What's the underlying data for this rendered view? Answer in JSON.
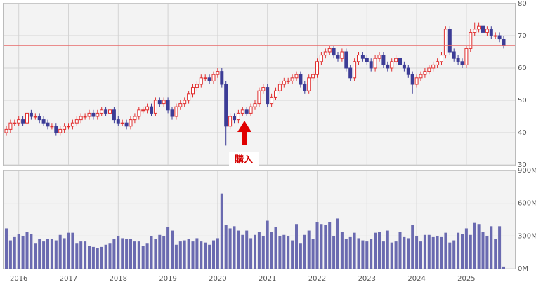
{
  "chart_data": {
    "type": "candlestick",
    "categories": [
      null,
      null,
      null,
      "2016",
      null,
      null,
      null,
      null,
      null,
      null,
      null,
      null,
      null,
      null,
      null,
      "2017",
      null,
      null,
      null,
      null,
      null,
      null,
      null,
      null,
      null,
      null,
      null,
      "2018",
      null,
      null,
      null,
      null,
      null,
      null,
      null,
      null,
      null,
      null,
      null,
      "2019",
      null,
      null,
      null,
      null,
      null,
      null,
      null,
      null,
      null,
      null,
      null,
      "2020",
      null,
      null,
      null,
      null,
      null,
      null,
      null,
      null,
      null,
      null,
      null,
      "2021",
      null,
      null,
      null,
      null,
      null,
      null,
      null,
      null,
      null,
      null,
      null,
      "2022",
      null,
      null,
      null,
      null,
      null,
      null,
      null,
      null,
      null,
      null,
      null,
      "2023",
      null,
      null,
      null,
      null,
      null,
      null,
      null,
      null,
      null,
      null,
      null,
      "2024",
      null,
      null,
      null,
      null,
      null,
      null,
      null,
      null,
      null,
      null,
      null,
      "2025",
      null,
      null,
      null,
      null,
      null,
      null,
      null,
      null,
      null
    ],
    "open": [
      40,
      41,
      43,
      43,
      44,
      43,
      46,
      45,
      45,
      44,
      43,
      42,
      42,
      40,
      41,
      42,
      42,
      43,
      44,
      45,
      45,
      46,
      45,
      46,
      47,
      46,
      47,
      44,
      43,
      43,
      42,
      44,
      45,
      47,
      47,
      48,
      46,
      50,
      49,
      50,
      47,
      45,
      48,
      49,
      50,
      52,
      54,
      55,
      57,
      57,
      56,
      58,
      59,
      55,
      42,
      45,
      44,
      46,
      47,
      46,
      48,
      49,
      53,
      54,
      49,
      51,
      53,
      55,
      56,
      56,
      57,
      58,
      55,
      53,
      57,
      58,
      62,
      64,
      65,
      66,
      64,
      63,
      65,
      60,
      57,
      62,
      64,
      63,
      62,
      60,
      63,
      64,
      61,
      60,
      62,
      63,
      61,
      60,
      58,
      55,
      57,
      58,
      59,
      60,
      61,
      62,
      64,
      72,
      65,
      63,
      62,
      61,
      66,
      71,
      72,
      73,
      71,
      72,
      70,
      70,
      69
    ],
    "high": [
      42,
      44,
      44,
      45,
      45,
      47,
      47,
      46,
      46,
      45,
      44,
      43,
      43,
      42,
      43,
      43,
      44,
      45,
      46,
      46,
      47,
      47,
      47,
      48,
      48,
      48,
      48,
      45,
      44,
      44,
      45,
      46,
      48,
      48,
      49,
      49,
      51,
      51,
      51,
      51,
      48,
      49,
      50,
      51,
      53,
      55,
      56,
      58,
      58,
      58,
      59,
      60,
      60,
      56,
      46,
      46,
      47,
      48,
      48,
      49,
      50,
      54,
      55,
      55,
      52,
      54,
      56,
      57,
      57,
      58,
      59,
      59,
      56,
      58,
      59,
      63,
      65,
      66,
      67,
      67,
      65,
      66,
      66,
      61,
      63,
      65,
      65,
      64,
      63,
      64,
      65,
      65,
      62,
      63,
      64,
      64,
      62,
      61,
      59,
      58,
      59,
      60,
      61,
      62,
      63,
      65,
      73,
      73,
      66,
      64,
      63,
      67,
      72,
      74,
      74,
      74,
      73,
      73,
      71,
      71,
      70
    ],
    "low": [
      39,
      40,
      42,
      42,
      42,
      42,
      44,
      44,
      43,
      42,
      41,
      41,
      39,
      39,
      40,
      41,
      41,
      42,
      43,
      44,
      44,
      44,
      44,
      45,
      45,
      45,
      43,
      42,
      42,
      41,
      41,
      43,
      44,
      46,
      46,
      45,
      45,
      48,
      48,
      46,
      44,
      44,
      47,
      48,
      49,
      51,
      53,
      54,
      56,
      55,
      55,
      57,
      54,
      36,
      41,
      43,
      43,
      45,
      45,
      45,
      47,
      48,
      52,
      48,
      48,
      50,
      52,
      54,
      55,
      55,
      56,
      54,
      52,
      52,
      56,
      57,
      61,
      63,
      64,
      63,
      62,
      62,
      59,
      56,
      56,
      61,
      62,
      61,
      59,
      59,
      62,
      60,
      59,
      59,
      61,
      60,
      59,
      57,
      52,
      54,
      56,
      57,
      58,
      59,
      60,
      61,
      63,
      64,
      62,
      61,
      60,
      60,
      65,
      70,
      71,
      70,
      70,
      69,
      69,
      68,
      66
    ],
    "close": [
      41,
      43,
      43,
      44,
      43,
      46,
      45,
      45,
      44,
      43,
      42,
      42,
      40,
      41,
      42,
      42,
      43,
      44,
      45,
      45,
      46,
      45,
      46,
      47,
      46,
      47,
      44,
      43,
      43,
      42,
      44,
      45,
      47,
      47,
      48,
      46,
      50,
      49,
      50,
      47,
      45,
      48,
      49,
      50,
      52,
      54,
      55,
      57,
      57,
      56,
      58,
      59,
      55,
      42,
      45,
      44,
      46,
      47,
      46,
      48,
      49,
      53,
      54,
      49,
      51,
      53,
      55,
      56,
      56,
      57,
      58,
      55,
      53,
      57,
      58,
      62,
      64,
      65,
      66,
      64,
      63,
      65,
      60,
      57,
      62,
      64,
      63,
      62,
      60,
      63,
      64,
      61,
      60,
      62,
      63,
      61,
      60,
      58,
      55,
      57,
      58,
      59,
      60,
      61,
      62,
      64,
      72,
      65,
      63,
      62,
      61,
      66,
      71,
      72,
      73,
      71,
      72,
      70,
      70,
      69,
      67
    ],
    "up_color": "#e03030",
    "down_color": "#3c3c96",
    "ylim": [
      30,
      80
    ],
    "yticks": [
      30,
      40,
      50,
      60,
      70,
      80
    ],
    "grid": true,
    "reference_line": {
      "value": 67,
      "color": "#e86a6a"
    },
    "annotation": "購入",
    "volume": {
      "color": "#6a6ab0",
      "values": [
        370,
        260,
        290,
        320,
        300,
        340,
        320,
        230,
        270,
        250,
        270,
        270,
        260,
        310,
        280,
        330,
        330,
        230,
        250,
        250,
        210,
        200,
        190,
        200,
        220,
        230,
        270,
        300,
        280,
        270,
        270,
        250,
        250,
        210,
        230,
        300,
        270,
        310,
        300,
        380,
        350,
        220,
        250,
        260,
        270,
        250,
        280,
        250,
        240,
        220,
        260,
        280,
        690,
        400,
        370,
        390,
        350,
        310,
        350,
        280,
        310,
        340,
        300,
        440,
        340,
        380,
        300,
        310,
        300,
        260,
        410,
        230,
        310,
        350,
        270,
        430,
        410,
        400,
        430,
        300,
        460,
        340,
        270,
        290,
        330,
        280,
        260,
        250,
        270,
        330,
        340,
        250,
        350,
        240,
        250,
        340,
        290,
        280,
        400,
        300,
        250,
        310,
        310,
        290,
        300,
        290,
        330,
        240,
        260,
        330,
        320,
        370,
        310,
        420,
        410,
        340,
        300,
        390,
        270,
        390,
        20
      ],
      "ylim": [
        0,
        900
      ],
      "yticks": [
        {
          "value": 0,
          "label": "0M"
        },
        {
          "value": 300,
          "label": "300M"
        },
        {
          "value": 600,
          "label": "600M"
        },
        {
          "value": 900,
          "label": "900M"
        }
      ]
    }
  }
}
